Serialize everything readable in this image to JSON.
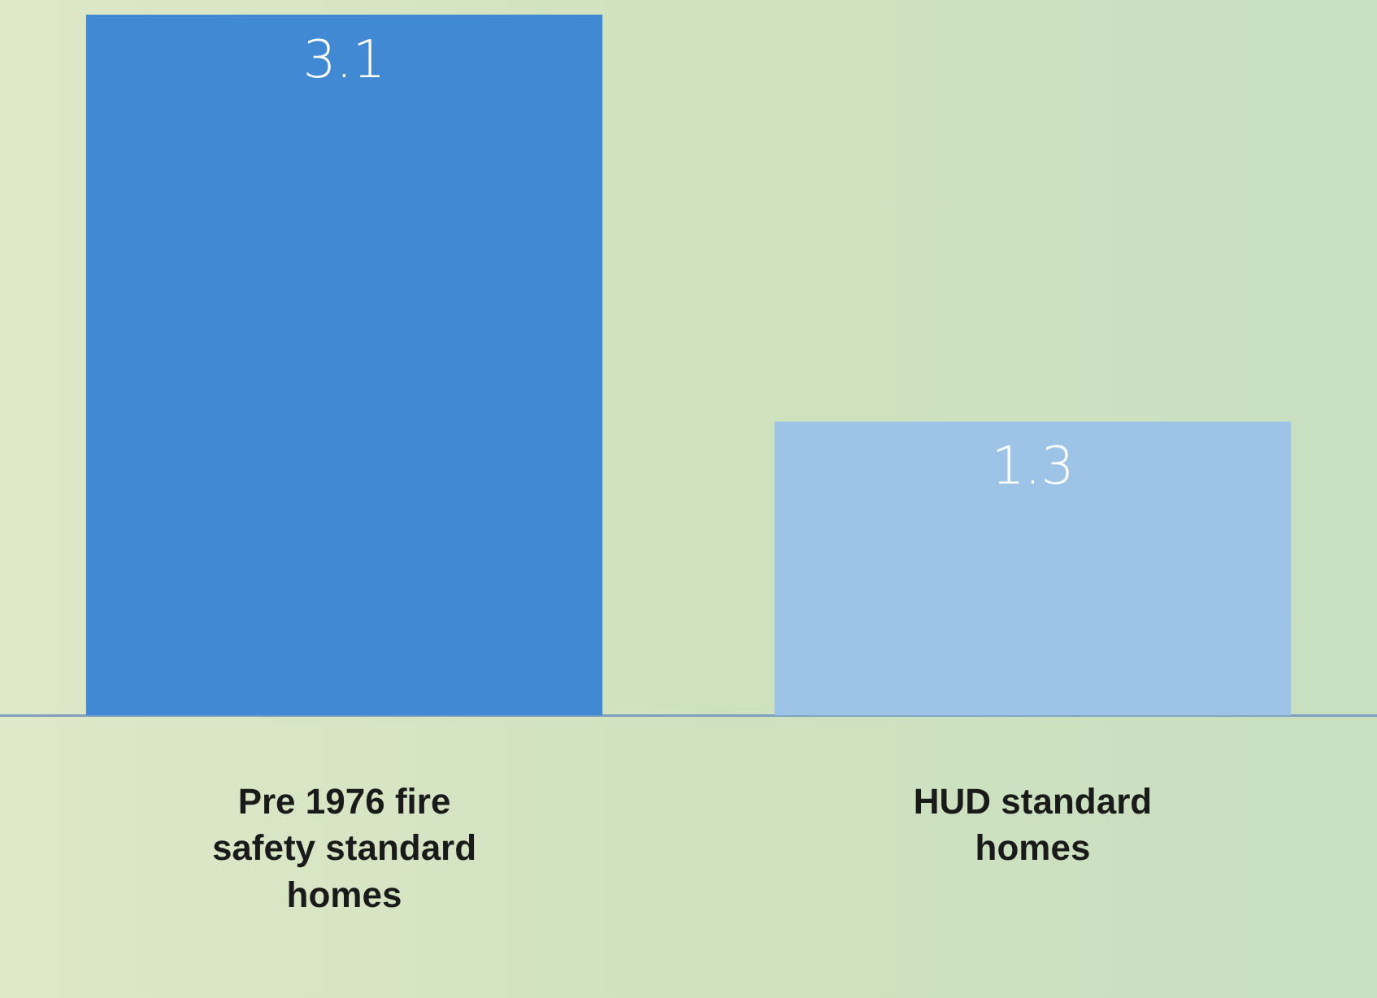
{
  "chart_data": {
    "type": "bar",
    "categories": [
      "Pre 1976 fire safety standard homes",
      "HUD standard homes"
    ],
    "values": [
      3.1,
      1.3
    ],
    "colors": [
      "#4189d2",
      "#9dc3e6"
    ],
    "data_labels": true,
    "grid": false,
    "legend": false
  }
}
